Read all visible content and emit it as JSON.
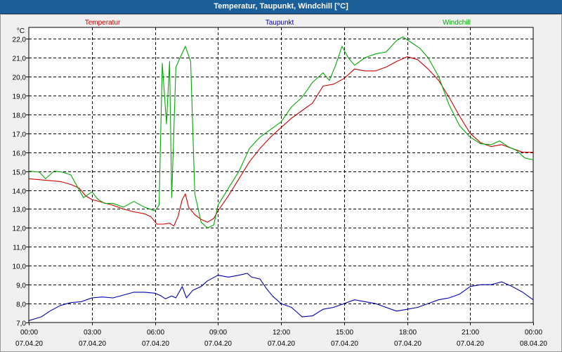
{
  "window": {
    "title": "Temperatur, Taupunkt, Windchill [°C]"
  },
  "colors": {
    "titlebar": "#1a5f9a",
    "plot_bg": "#ffffff",
    "grid": "#000000",
    "temperatur": "#cc0000",
    "taupunkt": "#0000aa",
    "windchill": "#00aa00"
  },
  "chart_data": {
    "type": "line",
    "title": "Temperatur, Taupunkt, Windchill [°C]",
    "yunit": "°C",
    "ylim": [
      7.0,
      22.6
    ],
    "yticks": [
      "22,0",
      "21,0",
      "20,0",
      "19,0",
      "18,0",
      "17,0",
      "16,0",
      "15,0",
      "14,0",
      "13,0",
      "12,0",
      "11,0",
      "10,0",
      "9,0",
      "8,0",
      "7,0"
    ],
    "ytick_values": [
      22,
      21,
      20,
      19,
      18,
      17,
      16,
      15,
      14,
      13,
      12,
      11,
      10,
      9,
      8,
      7
    ],
    "xlim": [
      0,
      24
    ],
    "xticks": [
      {
        "value": 0,
        "time": "00:00",
        "date": "07.04.20"
      },
      {
        "value": 3,
        "time": "03:00",
        "date": "07.04.20"
      },
      {
        "value": 6,
        "time": "06:00",
        "date": "07.04.20"
      },
      {
        "value": 9,
        "time": "09:00",
        "date": "07.04.20"
      },
      {
        "value": 12,
        "time": "12:00",
        "date": "07.04.20"
      },
      {
        "value": 15,
        "time": "15:00",
        "date": "07.04.20"
      },
      {
        "value": 18,
        "time": "18:00",
        "date": "07.04.20"
      },
      {
        "value": 21,
        "time": "21:00",
        "date": "07.04.20"
      },
      {
        "value": 24,
        "time": "00:00",
        "date": "08.04.20"
      }
    ],
    "grid": true,
    "legend": [
      "Temperatur",
      "Taupunkt",
      "Windchill"
    ],
    "series": [
      {
        "name": "Temperatur",
        "color": "#cc0000",
        "points": [
          [
            0,
            14.6
          ],
          [
            0.5,
            14.55
          ],
          [
            1,
            14.5
          ],
          [
            1.5,
            14.45
          ],
          [
            2,
            14.3
          ],
          [
            2.4,
            14.1
          ],
          [
            2.7,
            13.7
          ],
          [
            3,
            13.5
          ],
          [
            3.5,
            13.35
          ],
          [
            4,
            13.2
          ],
          [
            4.5,
            13.0
          ],
          [
            5,
            12.85
          ],
          [
            5.5,
            12.75
          ],
          [
            5.8,
            12.6
          ],
          [
            6.1,
            12.2
          ],
          [
            6.4,
            12.2
          ],
          [
            6.7,
            12.25
          ],
          [
            6.9,
            12.1
          ],
          [
            7.1,
            12.6
          ],
          [
            7.3,
            13.5
          ],
          [
            7.45,
            13.8
          ],
          [
            7.6,
            13.1
          ],
          [
            7.9,
            12.7
          ],
          [
            8.2,
            12.45
          ],
          [
            8.5,
            12.3
          ],
          [
            8.8,
            12.5
          ],
          [
            9,
            12.9
          ],
          [
            9.5,
            13.7
          ],
          [
            10,
            14.6
          ],
          [
            10.5,
            15.5
          ],
          [
            11,
            16.2
          ],
          [
            11.5,
            16.8
          ],
          [
            12,
            17.3
          ],
          [
            12.5,
            17.8
          ],
          [
            13,
            18.2
          ],
          [
            13.5,
            18.6
          ],
          [
            14,
            19.5
          ],
          [
            14.5,
            19.6
          ],
          [
            15,
            19.9
          ],
          [
            15.5,
            20.4
          ],
          [
            16,
            20.3
          ],
          [
            16.5,
            20.3
          ],
          [
            17,
            20.5
          ],
          [
            17.5,
            20.8
          ],
          [
            18,
            21.05
          ],
          [
            18.5,
            20.9
          ],
          [
            19,
            20.4
          ],
          [
            19.5,
            19.8
          ],
          [
            20,
            18.9
          ],
          [
            20.5,
            17.9
          ],
          [
            21,
            17.0
          ],
          [
            21.5,
            16.5
          ],
          [
            22,
            16.3
          ],
          [
            22.5,
            16.4
          ],
          [
            23,
            16.2
          ],
          [
            23.5,
            16.0
          ],
          [
            24,
            16.0
          ]
        ]
      },
      {
        "name": "Taupunkt",
        "color": "#0000aa",
        "points": [
          [
            0,
            7.1
          ],
          [
            0.3,
            7.2
          ],
          [
            0.6,
            7.3
          ],
          [
            1,
            7.6
          ],
          [
            1.5,
            7.9
          ],
          [
            2,
            8.05
          ],
          [
            2.5,
            8.1
          ],
          [
            3,
            8.3
          ],
          [
            3.5,
            8.35
          ],
          [
            4,
            8.3
          ],
          [
            4.5,
            8.45
          ],
          [
            5,
            8.6
          ],
          [
            5.5,
            8.6
          ],
          [
            6,
            8.55
          ],
          [
            6.3,
            8.4
          ],
          [
            6.5,
            8.25
          ],
          [
            6.8,
            8.4
          ],
          [
            7,
            8.3
          ],
          [
            7.3,
            8.9
          ],
          [
            7.5,
            8.3
          ],
          [
            7.8,
            8.7
          ],
          [
            8.2,
            8.9
          ],
          [
            8.5,
            9.2
          ],
          [
            9,
            9.5
          ],
          [
            9.5,
            9.4
          ],
          [
            10,
            9.5
          ],
          [
            10.4,
            9.6
          ],
          [
            10.6,
            9.4
          ],
          [
            11,
            9.3
          ],
          [
            11.3,
            8.8
          ],
          [
            11.6,
            8.4
          ],
          [
            12,
            8.0
          ],
          [
            12.5,
            7.8
          ],
          [
            13,
            7.3
          ],
          [
            13.5,
            7.35
          ],
          [
            14,
            7.7
          ],
          [
            14.5,
            7.8
          ],
          [
            15,
            8.0
          ],
          [
            15.5,
            8.2
          ],
          [
            16,
            8.1
          ],
          [
            16.5,
            8.0
          ],
          [
            17,
            7.8
          ],
          [
            17.5,
            7.6
          ],
          [
            18,
            7.7
          ],
          [
            18.5,
            7.8
          ],
          [
            19,
            8.0
          ],
          [
            19.5,
            8.2
          ],
          [
            20,
            8.3
          ],
          [
            20.5,
            8.5
          ],
          [
            21,
            8.9
          ],
          [
            21.5,
            9.0
          ],
          [
            22,
            9.0
          ],
          [
            22.5,
            9.15
          ],
          [
            23,
            8.9
          ],
          [
            23.5,
            8.6
          ],
          [
            24,
            8.2
          ]
        ]
      },
      {
        "name": "Windchill",
        "color": "#00aa00",
        "points": [
          [
            0,
            15.0
          ],
          [
            0.5,
            14.95
          ],
          [
            0.8,
            14.6
          ],
          [
            1.2,
            15.0
          ],
          [
            1.6,
            14.95
          ],
          [
            2,
            14.8
          ],
          [
            2.3,
            14.2
          ],
          [
            2.6,
            13.6
          ],
          [
            3,
            13.9
          ],
          [
            3.3,
            13.5
          ],
          [
            3.6,
            13.3
          ],
          [
            4,
            13.3
          ],
          [
            4.5,
            13.1
          ],
          [
            5,
            13.4
          ],
          [
            5.5,
            13.1
          ],
          [
            6,
            12.9
          ],
          [
            6.2,
            13.2
          ],
          [
            6.35,
            20.7
          ],
          [
            6.55,
            17.5
          ],
          [
            6.7,
            20.8
          ],
          [
            6.8,
            13.6
          ],
          [
            7,
            20.5
          ],
          [
            7.2,
            21.0
          ],
          [
            7.45,
            21.6
          ],
          [
            7.7,
            20.8
          ],
          [
            7.9,
            13.8
          ],
          [
            8.2,
            12.3
          ],
          [
            8.5,
            12.0
          ],
          [
            8.8,
            12.15
          ],
          [
            9,
            13.2
          ],
          [
            9.5,
            14.1
          ],
          [
            10,
            15.0
          ],
          [
            10.5,
            16.2
          ],
          [
            11,
            16.8
          ],
          [
            11.5,
            17.2
          ],
          [
            12,
            17.6
          ],
          [
            12.5,
            18.4
          ],
          [
            13,
            18.9
          ],
          [
            13.5,
            19.7
          ],
          [
            14,
            20.2
          ],
          [
            14.3,
            19.8
          ],
          [
            14.6,
            20.6
          ],
          [
            14.9,
            21.6
          ],
          [
            15.2,
            21.0
          ],
          [
            15.5,
            20.6
          ],
          [
            16,
            21.0
          ],
          [
            16.5,
            21.2
          ],
          [
            17,
            21.3
          ],
          [
            17.5,
            21.9
          ],
          [
            17.8,
            22.1
          ],
          [
            18.2,
            21.8
          ],
          [
            18.6,
            21.5
          ],
          [
            19,
            21.0
          ],
          [
            19.5,
            20.0
          ],
          [
            20,
            18.5
          ],
          [
            20.5,
            17.4
          ],
          [
            21,
            16.8
          ],
          [
            21.5,
            16.45
          ],
          [
            22,
            16.4
          ],
          [
            22.4,
            16.6
          ],
          [
            22.8,
            16.3
          ],
          [
            23.2,
            16.1
          ],
          [
            23.6,
            15.7
          ],
          [
            24,
            15.6
          ]
        ]
      }
    ]
  }
}
